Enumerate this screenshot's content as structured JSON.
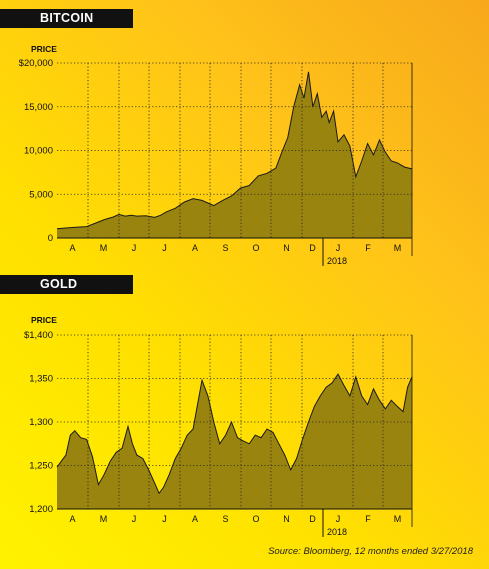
{
  "labels": {
    "bitcoin_header": "BITCOIN",
    "gold_header": "GOLD",
    "source": "Source: Bloomberg, 12 months ended 3/27/2018"
  },
  "colors": {
    "fill": "#9a8410",
    "line": "#1a1a1a",
    "header_bg": "#111111",
    "header_text": "#ffffff",
    "grid": "#222222"
  },
  "chart_data": [
    {
      "type": "area",
      "title": "BITCOIN",
      "ylabel": "PRICE",
      "ylim": [
        0,
        20000
      ],
      "yticks": [
        0,
        5000,
        10000,
        15000,
        20000
      ],
      "ytick_labels": [
        "0",
        "5,000",
        "10,000",
        "15,000",
        "$20,000"
      ],
      "months": [
        "A",
        "M",
        "J",
        "J",
        "A",
        "S",
        "O",
        "N",
        "D",
        "J",
        "F",
        "M"
      ],
      "year_marker": "2018",
      "grid": true,
      "x_unit": "months since 2017-03-27",
      "x": [
        0,
        0.35,
        0.7,
        1.0,
        1.3,
        1.6,
        1.9,
        2.1,
        2.3,
        2.5,
        2.7,
        3.0,
        3.3,
        3.5,
        3.7,
        4.0,
        4.3,
        4.6,
        4.9,
        5.1,
        5.3,
        5.6,
        5.9,
        6.2,
        6.5,
        6.8,
        7.1,
        7.4,
        7.6,
        7.8,
        8.0,
        8.2,
        8.35,
        8.5,
        8.65,
        8.8,
        8.95,
        9.1,
        9.2,
        9.35,
        9.5,
        9.7,
        9.9,
        10.1,
        10.3,
        10.5,
        10.7,
        10.9,
        11.1,
        11.3,
        11.5,
        11.75,
        12.0
      ],
      "values": [
        1050,
        1150,
        1250,
        1300,
        1700,
        2100,
        2400,
        2700,
        2500,
        2600,
        2500,
        2550,
        2350,
        2600,
        3000,
        3400,
        4100,
        4500,
        4300,
        4000,
        3700,
        4300,
        4800,
        5700,
        6000,
        7100,
        7400,
        8000,
        9800,
        11500,
        15000,
        17500,
        16000,
        19000,
        15000,
        16500,
        13800,
        14500,
        13200,
        14500,
        11000,
        11800,
        10500,
        7000,
        8800,
        10800,
        9500,
        11200,
        9800,
        8800,
        8600,
        8100,
        7900
      ]
    },
    {
      "type": "area",
      "title": "GOLD",
      "ylabel": "PRICE",
      "ylim": [
        1200,
        1400
      ],
      "yticks": [
        1200,
        1250,
        1300,
        1350,
        1400
      ],
      "ytick_labels": [
        "1,200",
        "1,250",
        "1,300",
        "1,350",
        "$1,400"
      ],
      "months": [
        "A",
        "M",
        "J",
        "J",
        "A",
        "S",
        "O",
        "N",
        "D",
        "J",
        "F",
        "M"
      ],
      "year_marker": "2018",
      "grid": true,
      "x_unit": "months since 2017-03-27",
      "x": [
        0,
        0.15,
        0.3,
        0.45,
        0.6,
        0.8,
        1.0,
        1.2,
        1.4,
        1.6,
        1.8,
        2.0,
        2.2,
        2.4,
        2.55,
        2.7,
        2.9,
        3.1,
        3.3,
        3.45,
        3.6,
        3.8,
        4.0,
        4.2,
        4.4,
        4.6,
        4.75,
        4.9,
        5.1,
        5.3,
        5.5,
        5.7,
        5.9,
        6.1,
        6.3,
        6.5,
        6.7,
        6.9,
        7.1,
        7.3,
        7.5,
        7.7,
        7.9,
        8.1,
        8.3,
        8.5,
        8.7,
        8.9,
        9.1,
        9.3,
        9.5,
        9.7,
        9.9,
        10.1,
        10.3,
        10.5,
        10.7,
        10.9,
        11.1,
        11.3,
        11.5,
        11.7,
        11.85,
        12.0
      ],
      "values": [
        1248,
        1255,
        1262,
        1285,
        1290,
        1282,
        1280,
        1260,
        1228,
        1240,
        1255,
        1265,
        1270,
        1295,
        1275,
        1262,
        1258,
        1245,
        1230,
        1218,
        1225,
        1240,
        1258,
        1270,
        1285,
        1292,
        1320,
        1348,
        1330,
        1300,
        1275,
        1285,
        1300,
        1282,
        1278,
        1275,
        1285,
        1282,
        1292,
        1288,
        1275,
        1262,
        1245,
        1258,
        1280,
        1300,
        1318,
        1330,
        1340,
        1345,
        1355,
        1342,
        1330,
        1352,
        1330,
        1320,
        1338,
        1325,
        1315,
        1325,
        1318,
        1312,
        1340,
        1352
      ]
    }
  ]
}
